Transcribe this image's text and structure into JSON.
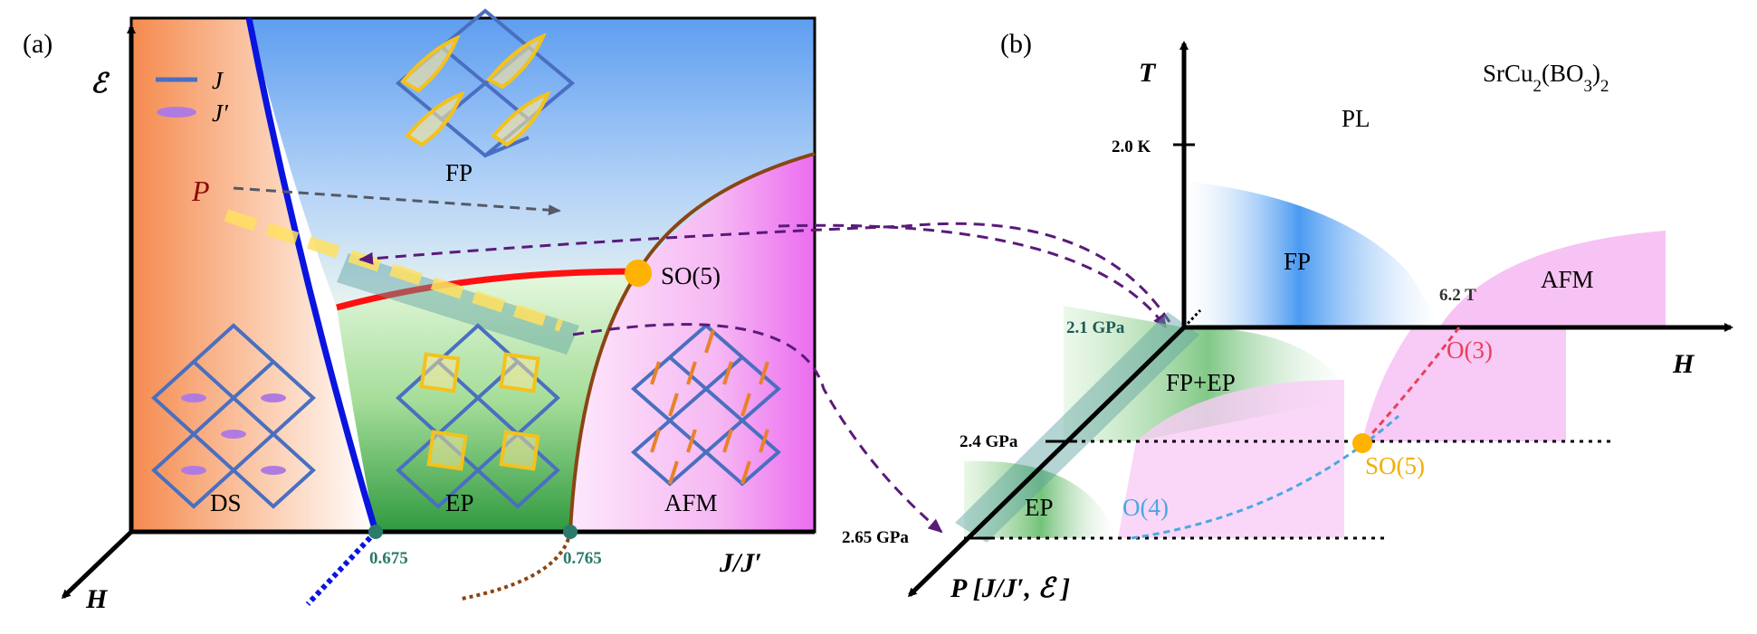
{
  "panel_a": {
    "label": "(a)",
    "y_axis_symbol": "ℰ",
    "x_axis_label": "J/J′",
    "depth_axis_label": "H",
    "legend": {
      "j": "J",
      "jprime": "J′"
    },
    "path_label": "P",
    "regions": {
      "ds": "DS",
      "fp": "FP",
      "ep": "EP",
      "afm": "AFM"
    },
    "critical_point": "SO(5)",
    "tick_1": "0.675",
    "tick_2": "0.765",
    "colors": {
      "ds": "#f58a4e",
      "fp": "#5e9ef0",
      "ep": "#3aa64a",
      "afm": "#ec6cf0",
      "boundary": "#0a14e0",
      "first_order": "#ff1010",
      "afm_line": "#8b4513",
      "so5": "#ffb300"
    }
  },
  "panel_b": {
    "label": "(b)",
    "compound_main": "SrCu",
    "compound_sub1": "2",
    "compound_mid": "(BO",
    "compound_sub2": "3",
    "compound_end": ")",
    "compound_sub3": "2",
    "t_axis_label": "T",
    "h_axis_label": "H",
    "p_axis_label": "P [J/J′, ℰ ]",
    "t_tick": "2.0 K",
    "pl_label": "PL",
    "regions": {
      "fp": "FP",
      "afm": "AFM",
      "fp_ep": "FP+EP",
      "ep": "EP"
    },
    "field_tick": "6.2 T",
    "pressure_ticks": [
      "2.1 GPa",
      "2.4 GPa",
      "2.65 GPa"
    ],
    "o3": "O(3)",
    "o4": "O(4)",
    "so5": "SO(5)"
  }
}
